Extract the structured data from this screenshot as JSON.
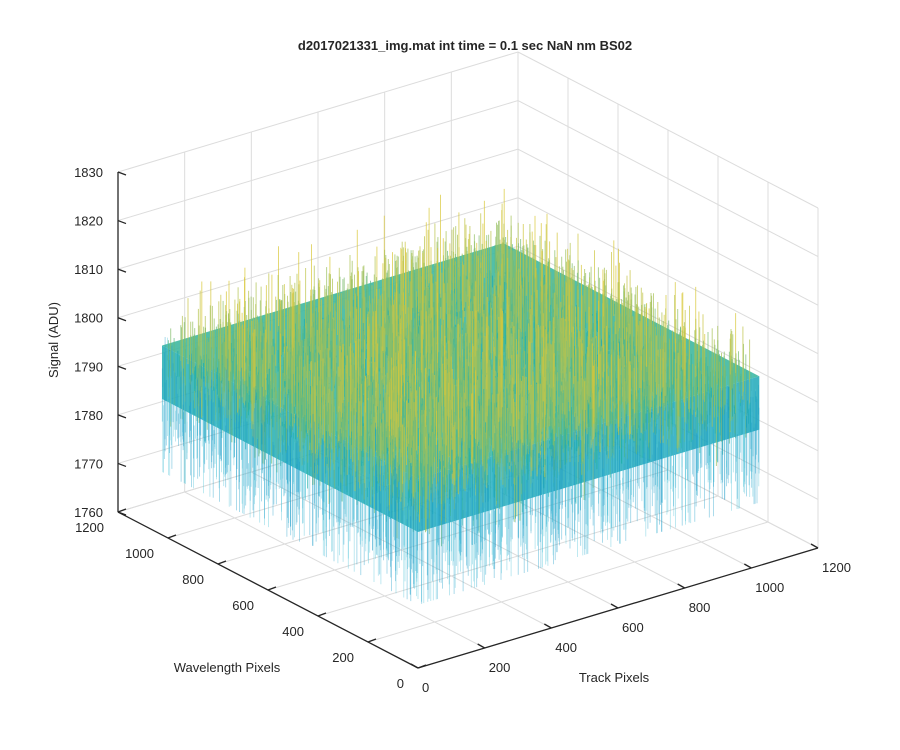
{
  "chart_data": {
    "type": "surface",
    "title": "d2017021331_img.mat int time = 0.1 sec  NaN nm BS02",
    "xlabel": "Track Pixels",
    "ylabel": "Wavelength Pixels",
    "zlabel": "Signal (ADU)",
    "xlim": [
      0,
      1200
    ],
    "ylim": [
      0,
      1200
    ],
    "zlim": [
      1760,
      1830
    ],
    "xticks": [
      "0",
      "200",
      "400",
      "600",
      "800",
      "1000",
      "1200"
    ],
    "yticks": [
      "0",
      "200",
      "400",
      "600",
      "800",
      "1000",
      "1200"
    ],
    "zticks": [
      "1760",
      "1770",
      "1780",
      "1790",
      "1800",
      "1810",
      "1820",
      "1830"
    ],
    "grid": true,
    "data_extent": {
      "x": [
        0,
        1024
      ],
      "y": [
        0,
        1024
      ]
    },
    "signal_mean": 1795,
    "signal_min": 1775,
    "signal_max": 1822,
    "colormap": "parula",
    "colors": {
      "low": "#0d8fd1",
      "mid": "#20b2aa",
      "high": "#d9c83a"
    }
  }
}
